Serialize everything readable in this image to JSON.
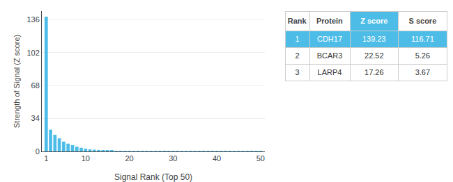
{
  "chart_data": {
    "type": "bar",
    "x": [
      1,
      2,
      3,
      4,
      5,
      6,
      7,
      8,
      9,
      10,
      11,
      12,
      13,
      14,
      15,
      16,
      17,
      18,
      19,
      20,
      21,
      22,
      23,
      24,
      25,
      26,
      27,
      28,
      29,
      30,
      31,
      32,
      33,
      34,
      35,
      36,
      37,
      38,
      39,
      40,
      41,
      42,
      43,
      44,
      45,
      46,
      47,
      48,
      49,
      50
    ],
    "values": [
      139.23,
      22.52,
      17.26,
      13.5,
      10.2,
      8.1,
      6.5,
      5.0,
      3.8,
      2.9,
      2.1,
      1.8,
      1.5,
      1.2,
      1.0,
      0.8,
      0.7,
      0.6,
      0.5,
      0.4,
      0.35,
      0.3,
      0.28,
      0.25,
      0.22,
      0.2,
      0.18,
      0.16,
      0.14,
      0.12,
      0.11,
      0.1,
      0.09,
      0.08,
      0.07,
      0.07,
      0.06,
      0.06,
      0.05,
      0.05,
      0.04,
      0.04,
      0.03,
      0.03,
      0.03,
      0.02,
      0.02,
      0.02,
      0.01,
      0.01
    ],
    "color": "#4dbde8",
    "xlabel": "Signal Rank (Top 50)",
    "ylabel": "Strength of Signal (Z score)",
    "xlim": [
      0,
      51
    ],
    "xticks": [
      1,
      10,
      20,
      30,
      40,
      50
    ],
    "ylim": [
      0,
      145
    ],
    "yticks": [
      0,
      34,
      68,
      102,
      136
    ],
    "grid": true,
    "table": {
      "headers": [
        "Rank",
        "Protein",
        "Z score",
        "S score"
      ],
      "rows": [
        [
          "1",
          "CDH17",
          "139.23",
          "116.71"
        ],
        [
          "2",
          "BCAR3",
          "22.52",
          "5.26"
        ],
        [
          "3",
          "LARP4",
          "17.26",
          "3.67"
        ]
      ]
    }
  }
}
